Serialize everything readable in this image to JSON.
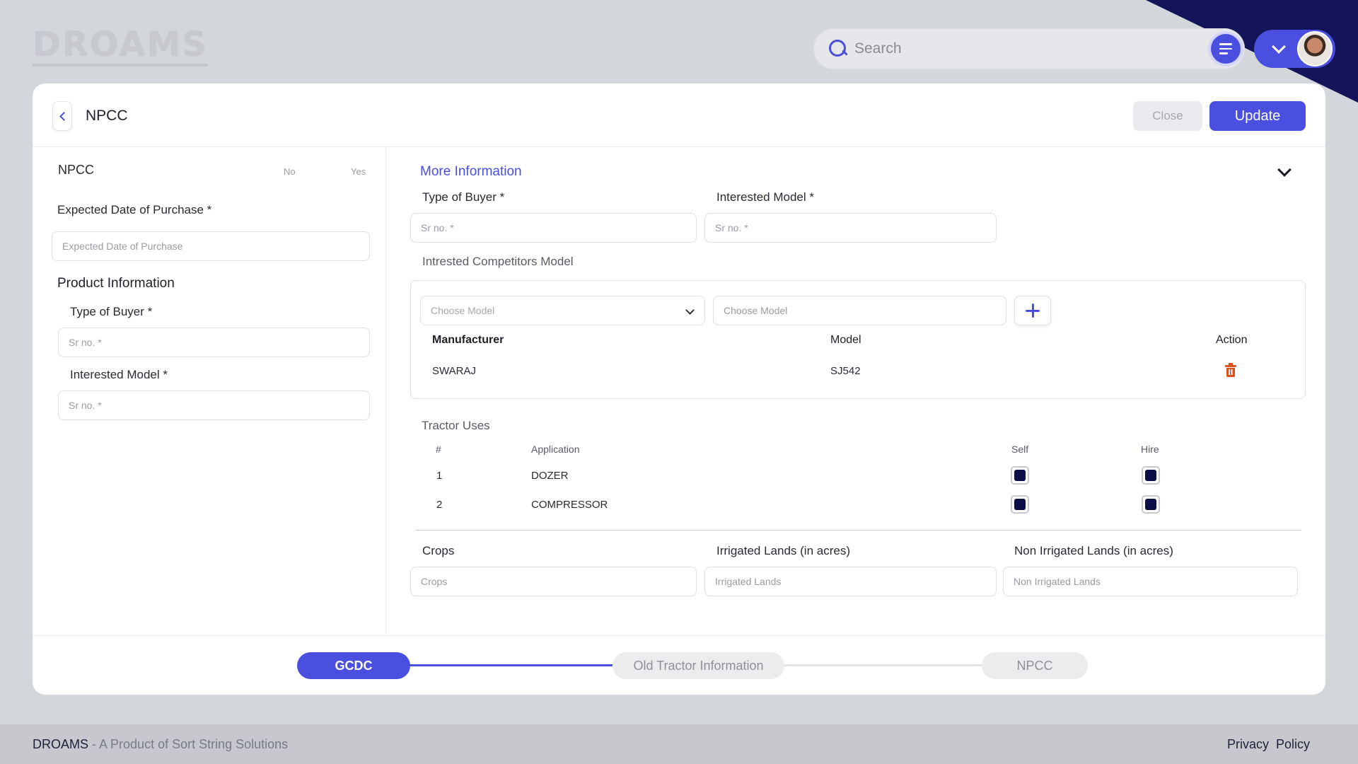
{
  "app": {
    "logo": "DROAMS"
  },
  "search": {
    "placeholder": "Search"
  },
  "header": {
    "title": "NPCC",
    "close_label": "Close",
    "update_label": "Update"
  },
  "left": {
    "npcc_label": "NPCC",
    "no_label": "No",
    "yes_label": "Yes",
    "expected_date_label": "Expected Date of Purchase *",
    "expected_date_placeholder": "Expected Date of Purchase",
    "product_info_title": "Product Information",
    "type_of_buyer_label": "Type of Buyer *",
    "type_of_buyer_placeholder": "Sr no. *",
    "interested_model_label": "Interested Model *",
    "interested_model_placeholder": "Sr no. *"
  },
  "right": {
    "more_info_title": "More Information",
    "type_of_buyer_label": "Type of Buyer *",
    "type_of_buyer_placeholder": "Sr no. *",
    "interested_model_label": "Interested Model *",
    "interested_model_placeholder": "Sr no. *",
    "competitors_label": "Intrested Competitors Model",
    "choose_model_1": "Choose Model",
    "choose_model_2": "Choose Model",
    "table_headers": {
      "manufacturer": "Manufacturer",
      "model": "Model",
      "action": "Action"
    },
    "competitor_rows": [
      {
        "manufacturer": "SWARAJ",
        "model": "SJ542"
      }
    ],
    "tractor_uses_label": "Tractor Uses",
    "uses_headers": {
      "num": "#",
      "application": "Application",
      "self": "Self",
      "hire": "Hire"
    },
    "uses_rows": [
      {
        "num": "1",
        "application": "DOZER",
        "self": true,
        "hire": true
      },
      {
        "num": "2",
        "application": "COMPRESSOR",
        "self": true,
        "hire": true
      }
    ],
    "crops_label": "Crops",
    "crops_placeholder": "Crops",
    "irrigated_label": "Irrigated Lands (in acres)",
    "irrigated_placeholder": "Irrigated Lands",
    "non_irrigated_label": "Non Irrigated Lands (in acres)",
    "non_irrigated_placeholder": "Non Irrigated Lands"
  },
  "steps": [
    {
      "label": "GCDC",
      "state": "active"
    },
    {
      "label": "Old Tractor Information",
      "state": "inactive"
    },
    {
      "label": "NPCC",
      "state": "inactive"
    }
  ],
  "footer": {
    "brand": "DROAMS",
    "tagline": " - A Product of Sort String Solutions",
    "privacy": "Privacy  Policy"
  },
  "colors": {
    "accent": "#4b4fe0",
    "navy": "#14145a",
    "checkbox_fill": "#0c0f45",
    "delete": "#d9531e"
  }
}
